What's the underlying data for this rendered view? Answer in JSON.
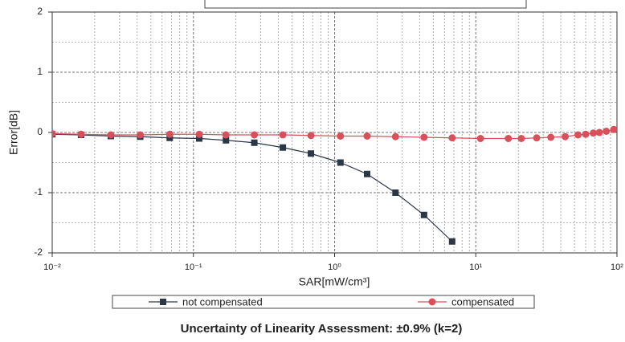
{
  "chart_data": {
    "type": "line",
    "y_label": "Error[dB]",
    "x_label": "SAR[mW/cm³]",
    "footnote": "Uncertainty of Linearity Assessment: ±0.9% (k=2)",
    "log_x": true,
    "grid": true,
    "xlim": [
      0.01,
      100
    ],
    "xticks": [
      {
        "value": 0.01,
        "label": "10⁻²"
      },
      {
        "value": 0.1,
        "label": "10⁻¹"
      },
      {
        "value": 1,
        "label": "10⁰"
      },
      {
        "value": 10,
        "label": "10¹"
      },
      {
        "value": 100,
        "label": "10²"
      }
    ],
    "ylim": [
      -2,
      2
    ],
    "yticks": [
      -2,
      -1,
      0,
      1,
      2
    ],
    "series": [
      {
        "name": "not compensated",
        "color": "#2b3646",
        "marker": "square",
        "x": [
          0.01,
          0.016,
          0.026,
          0.042,
          0.068,
          0.11,
          0.17,
          0.27,
          0.43,
          0.68,
          1.1,
          1.7,
          2.7,
          4.3,
          6.8
        ],
        "values": [
          -0.03,
          -0.04,
          -0.06,
          -0.07,
          -0.09,
          -0.1,
          -0.13,
          -0.17,
          -0.25,
          -0.35,
          -0.5,
          -0.69,
          -1.0,
          -1.37,
          -1.81
        ]
      },
      {
        "name": "compensated",
        "color": "#d9505a",
        "marker": "circle",
        "x": [
          0.01,
          0.016,
          0.026,
          0.042,
          0.068,
          0.11,
          0.17,
          0.27,
          0.43,
          0.68,
          1.1,
          1.7,
          2.7,
          4.3,
          6.8,
          10.8,
          17,
          21,
          27,
          34,
          43,
          53,
          60,
          68,
          75,
          84,
          95
        ],
        "values": [
          -0.02,
          -0.03,
          -0.04,
          -0.04,
          -0.03,
          -0.03,
          -0.04,
          -0.04,
          -0.04,
          -0.05,
          -0.06,
          -0.06,
          -0.07,
          -0.08,
          -0.09,
          -0.1,
          -0.1,
          -0.1,
          -0.09,
          -0.08,
          -0.07,
          -0.04,
          -0.03,
          -0.01,
          0.0,
          0.02,
          0.05
        ]
      }
    ]
  }
}
